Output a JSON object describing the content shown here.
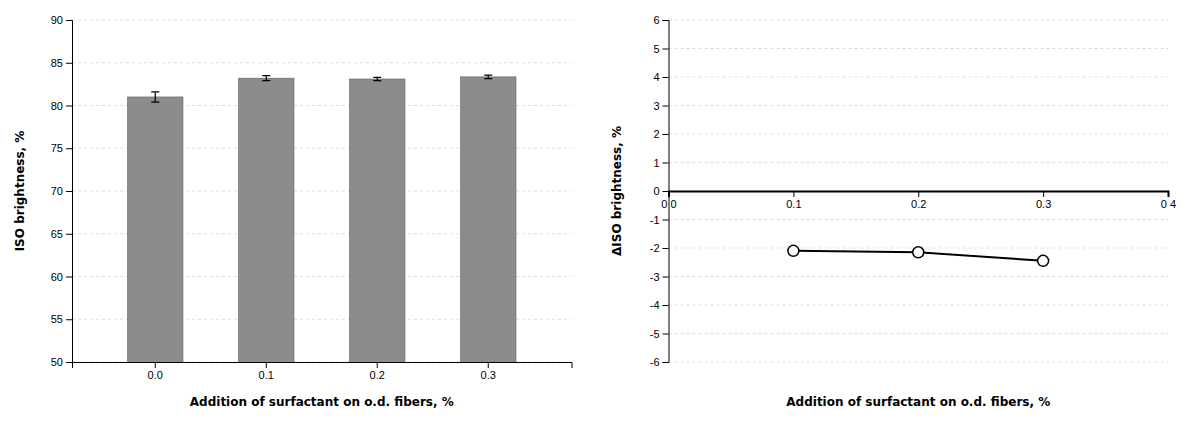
{
  "chart_data": [
    {
      "type": "bar",
      "categories": [
        "0.0",
        "0.1",
        "0.2",
        "0.3"
      ],
      "values": [
        81.0,
        83.2,
        83.1,
        83.35
      ],
      "errors": [
        0.6,
        0.3,
        0.2,
        0.2
      ],
      "color": "#8c8c8c",
      "xlabel": "Addition  of surfactant on o.d. fibers, %",
      "ylabel": "ISO brightness, %",
      "ylim": [
        50,
        90
      ],
      "yticks": [
        50,
        55,
        60,
        65,
        70,
        75,
        80,
        85,
        90
      ],
      "grid": true
    },
    {
      "type": "line",
      "x": [
        0.1,
        0.2,
        0.3
      ],
      "values": [
        -2.1,
        -2.15,
        -2.45
      ],
      "color": "#000000",
      "marker": "circle",
      "xlabel": "Addition  of surfactant on o.d. fibers, %",
      "ylabel": "ΔISO brightness, %",
      "xlim": [
        0,
        0.4
      ],
      "xticks": [
        {
          "value": 0.0,
          "label": "0 0"
        },
        0.1,
        0.2,
        0.3,
        {
          "value": 0.4,
          "label": "0 4"
        }
      ],
      "ylim": [
        -6,
        6
      ],
      "yticks": [
        -6,
        -5,
        -4,
        -3,
        -2,
        -1,
        0,
        1,
        2,
        3,
        4,
        5,
        6
      ],
      "grid": true
    }
  ]
}
